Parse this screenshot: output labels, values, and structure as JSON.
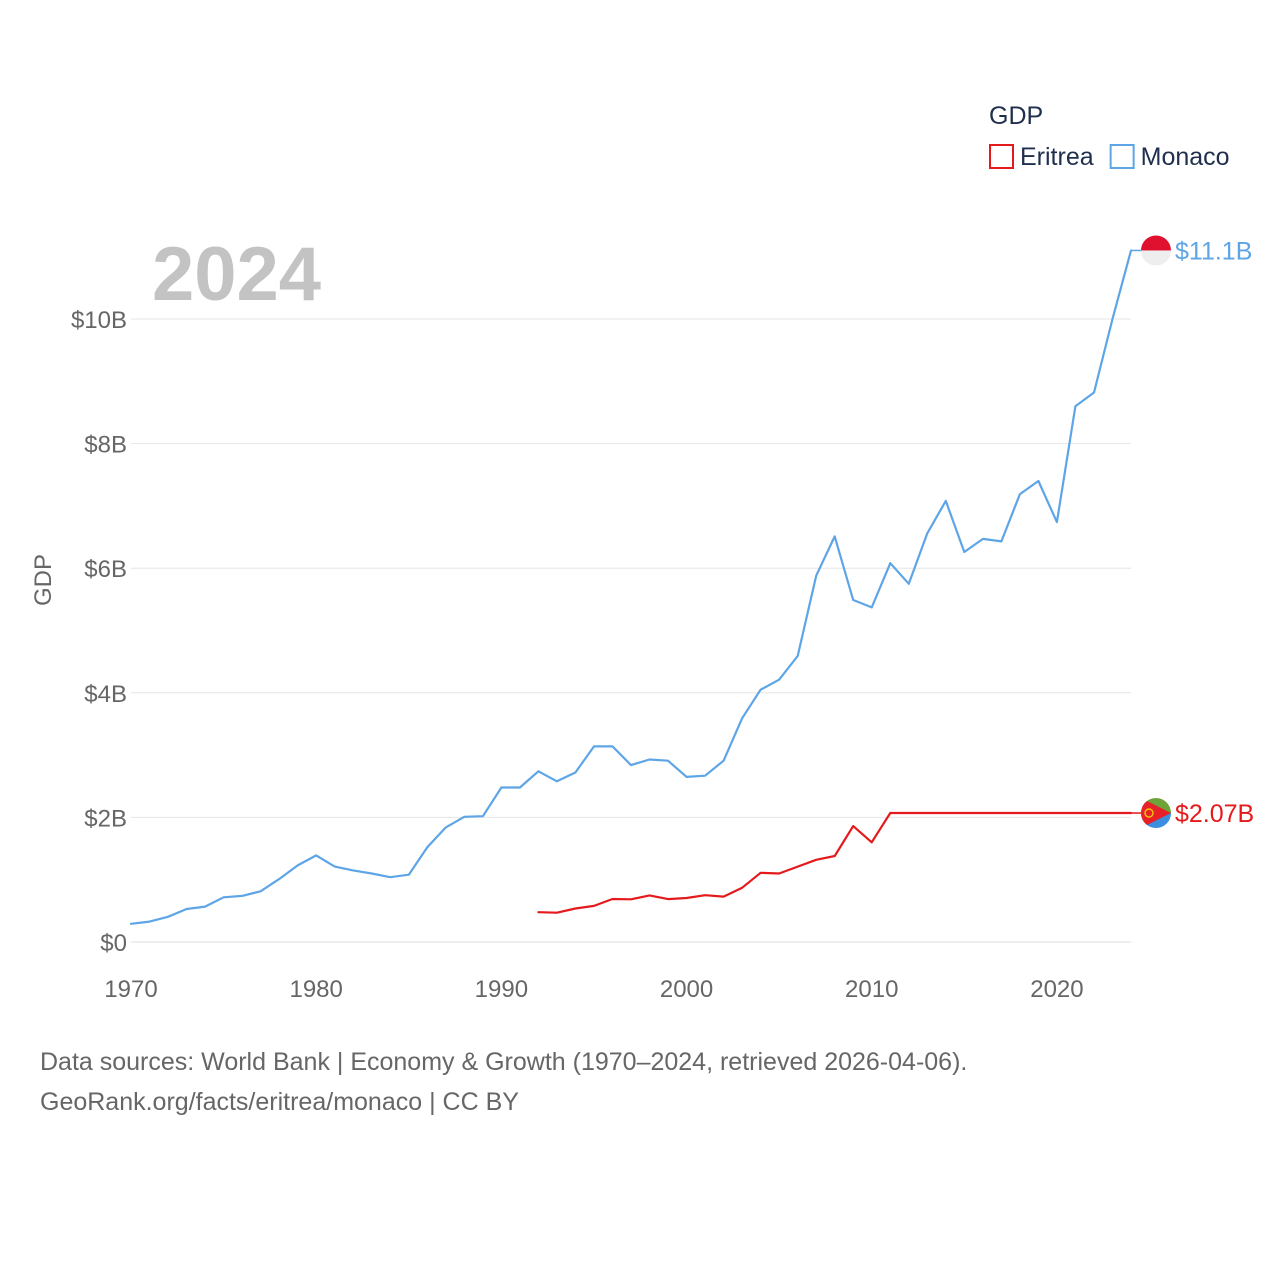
{
  "chart_data": {
    "type": "line",
    "legend_title": "GDP",
    "ylabel": "GDP",
    "xlabel": "",
    "year_label": "2024",
    "xlim": [
      1970,
      2024
    ],
    "ylim": [
      0,
      10000000000
    ],
    "x_ticks": [
      {
        "value": 1970,
        "label": "1970"
      },
      {
        "value": 1980,
        "label": "1980"
      },
      {
        "value": 1990,
        "label": "1990"
      },
      {
        "value": 2000,
        "label": "2000"
      },
      {
        "value": 2010,
        "label": "2010"
      },
      {
        "value": 2020,
        "label": "2020"
      }
    ],
    "y_ticks": [
      {
        "value": 0,
        "label": "$0"
      },
      {
        "value": 2000000000,
        "label": "$2B"
      },
      {
        "value": 4000000000,
        "label": "$4B"
      },
      {
        "value": 6000000000,
        "label": "$6B"
      },
      {
        "value": 8000000000,
        "label": "$8B"
      },
      {
        "value": 10000000000,
        "label": "$10B"
      }
    ],
    "legend_position": "top-right",
    "series": [
      {
        "name": "Eritrea",
        "color": "#e41a1c",
        "end_label": "$2.07B",
        "flag": "eritrea-flag",
        "points": [
          [
            1992,
            0.478
          ],
          [
            1993,
            0.471
          ],
          [
            1994,
            0.537
          ],
          [
            1995,
            0.58
          ],
          [
            1996,
            0.69
          ],
          [
            1997,
            0.686
          ],
          [
            1998,
            0.748
          ],
          [
            1999,
            0.688
          ],
          [
            2000,
            0.706
          ],
          [
            2001,
            0.752
          ],
          [
            2002,
            0.729
          ],
          [
            2003,
            0.87
          ],
          [
            2004,
            1.11
          ],
          [
            2005,
            1.1
          ],
          [
            2006,
            1.21
          ],
          [
            2007,
            1.32
          ],
          [
            2008,
            1.38
          ],
          [
            2009,
            1.86
          ],
          [
            2010,
            1.6
          ],
          [
            2011,
            2.07
          ],
          [
            2012,
            2.07
          ],
          [
            2013,
            2.07
          ],
          [
            2014,
            2.07
          ],
          [
            2015,
            2.07
          ],
          [
            2016,
            2.07
          ],
          [
            2017,
            2.07
          ],
          [
            2018,
            2.07
          ],
          [
            2019,
            2.07
          ],
          [
            2020,
            2.07
          ],
          [
            2021,
            2.07
          ],
          [
            2022,
            2.07
          ],
          [
            2023,
            2.07
          ],
          [
            2024,
            2.07
          ]
        ]
      },
      {
        "name": "Monaco",
        "color": "#5da5e6",
        "end_label": "$11.1B",
        "flag": "monaco-flag",
        "points": [
          [
            1970,
            0.292
          ],
          [
            1971,
            0.327
          ],
          [
            1972,
            0.405
          ],
          [
            1973,
            0.53
          ],
          [
            1974,
            0.568
          ],
          [
            1975,
            0.717
          ],
          [
            1976,
            0.74
          ],
          [
            1977,
            0.814
          ],
          [
            1978,
            1.01
          ],
          [
            1979,
            1.23
          ],
          [
            1980,
            1.39
          ],
          [
            1981,
            1.21
          ],
          [
            1982,
            1.15
          ],
          [
            1983,
            1.1
          ],
          [
            1984,
            1.04
          ],
          [
            1985,
            1.08
          ],
          [
            1986,
            1.52
          ],
          [
            1987,
            1.84
          ],
          [
            1988,
            2.01
          ],
          [
            1989,
            2.02
          ],
          [
            1990,
            2.48
          ],
          [
            1991,
            2.48
          ],
          [
            1992,
            2.74
          ],
          [
            1993,
            2.58
          ],
          [
            1994,
            2.72
          ],
          [
            1995,
            3.14
          ],
          [
            1996,
            3.14
          ],
          [
            1997,
            2.84
          ],
          [
            1998,
            2.93
          ],
          [
            1999,
            2.91
          ],
          [
            2000,
            2.65
          ],
          [
            2001,
            2.67
          ],
          [
            2002,
            2.91
          ],
          [
            2003,
            3.59
          ],
          [
            2004,
            4.05
          ],
          [
            2005,
            4.21
          ],
          [
            2006,
            4.59
          ],
          [
            2007,
            5.88
          ],
          [
            2008,
            6.51
          ],
          [
            2009,
            5.49
          ],
          [
            2010,
            5.37
          ],
          [
            2011,
            6.08
          ],
          [
            2012,
            5.75
          ],
          [
            2013,
            6.56
          ],
          [
            2014,
            7.08
          ],
          [
            2015,
            6.26
          ],
          [
            2016,
            6.47
          ],
          [
            2017,
            6.43
          ],
          [
            2018,
            7.19
          ],
          [
            2019,
            7.4
          ],
          [
            2020,
            6.74
          ],
          [
            2021,
            8.6
          ],
          [
            2022,
            8.82
          ],
          [
            2023,
            10.0
          ],
          [
            2024,
            11.1
          ]
        ]
      }
    ]
  },
  "footer": {
    "line1": "Data sources: World Bank | Economy & Growth (1970–2024, retrieved 2026-04-06).",
    "line2": "GeoRank.org/facts/eritrea/monaco | CC BY"
  }
}
